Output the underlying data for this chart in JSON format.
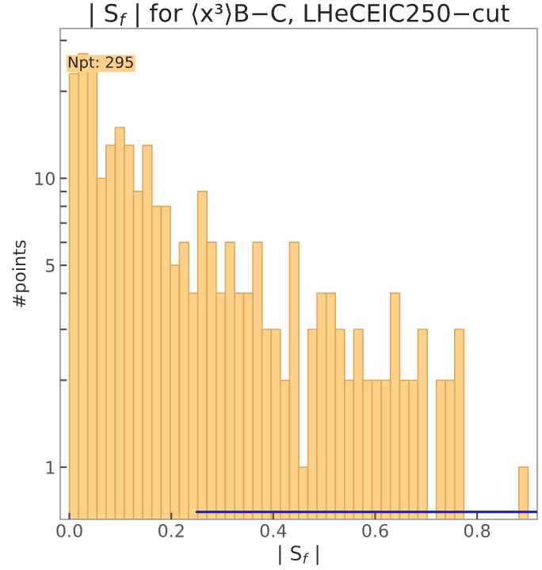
{
  "chart_data": {
    "type": "histogram",
    "title": "| S$_{f}$ | for ⟨x³⟩B−C, LHeCEIC250−cut",
    "xlabel": "| S$_{f}$ |",
    "ylabel": "#points",
    "annotations": [
      "Npt: 295"
    ],
    "bins": [
      0,
      0.018,
      0.036,
      0.054,
      0.072,
      0.09,
      0.108,
      0.126,
      0.144,
      0.162,
      0.18,
      0.198,
      0.216,
      0.234,
      0.252,
      0.27,
      0.288,
      0.306,
      0.324,
      0.342,
      0.36,
      0.378,
      0.396,
      0.414,
      0.432,
      0.45,
      0.468,
      0.486,
      0.504,
      0.522,
      0.54,
      0.558,
      0.576,
      0.594,
      0.612,
      0.63,
      0.648,
      0.666,
      0.684,
      0.702,
      0.72,
      0.738,
      0.756,
      0.774,
      0.792,
      0.81,
      0.828,
      0.846,
      0.864,
      0.882,
      0.9
    ],
    "values": [
      23,
      27,
      24,
      10,
      13,
      15,
      13,
      9,
      13,
      8,
      8,
      5,
      6,
      4,
      9,
      6,
      4,
      6,
      4,
      4,
      6,
      3,
      3,
      2,
      6,
      1,
      3,
      4,
      4,
      3,
      2,
      3,
      2,
      2,
      2,
      4,
      2,
      2,
      3,
      null,
      2,
      2,
      3,
      null,
      null,
      null,
      null,
      null,
      null,
      1
    ],
    "color": "#fdd189",
    "series": [
      {
        "type": "line",
        "color": "#2a2aa0",
        "x": [
          0.25,
          0.918
        ],
        "values": [
          0.7,
          0.7
        ]
      }
    ],
    "log": "y",
    "xlim": [
      -0.018,
      0.918
    ],
    "xticks": [
      {
        "value": 0,
        "label": "0.0"
      },
      0.2,
      0.4,
      0.6,
      0.8
    ],
    "ylim": [
      0.66,
      33
    ],
    "yticks": [
      1,
      {
        "value": 2,
        "label": null
      },
      {
        "value": 3,
        "label": null
      },
      {
        "value": 4,
        "label": null
      },
      5,
      {
        "value": 6,
        "label": null
      },
      {
        "value": 7,
        "label": null
      },
      {
        "value": 8,
        "label": null
      },
      {
        "value": 9,
        "label": null
      },
      10,
      {
        "value": 20,
        "label": null
      },
      {
        "value": 30,
        "label": null
      }
    ],
    "grid": false
  }
}
